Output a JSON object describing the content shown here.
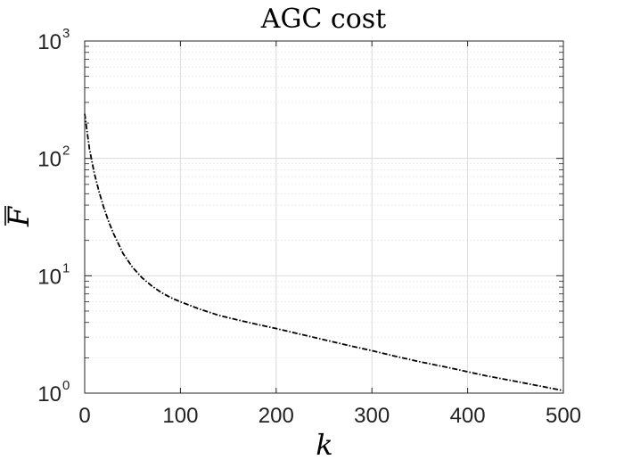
{
  "chart_data": {
    "type": "line",
    "title": "AGC cost",
    "xlabel": "k",
    "ylabel": "F",
    "ylabel_overline": true,
    "xlim": [
      0,
      500
    ],
    "ylim": [
      1,
      1000
    ],
    "yscale": "log",
    "grid": true,
    "minor_grid": true,
    "xticks": [
      "0",
      "100",
      "200",
      "300",
      "400",
      "500"
    ],
    "yticks": [
      {
        "base": "10",
        "exp": "0"
      },
      {
        "base": "10",
        "exp": "1"
      },
      {
        "base": "10",
        "exp": "2"
      },
      {
        "base": "10",
        "exp": "3"
      }
    ],
    "series": [
      {
        "color": "#000000",
        "style": "dash-dot",
        "x": [
          0,
          5,
          10,
          15,
          20,
          25,
          30,
          40,
          50,
          60,
          70,
          80,
          90,
          100,
          120,
          140,
          160,
          180,
          200,
          220,
          250,
          280,
          300,
          320,
          350,
          380,
          400,
          420,
          450,
          480,
          500
        ],
        "y": [
          240,
          120,
          75,
          52,
          38,
          29,
          23,
          15.5,
          11.8,
          9.6,
          8.2,
          7.2,
          6.5,
          6.0,
          5.2,
          4.6,
          4.2,
          3.85,
          3.55,
          3.25,
          2.85,
          2.5,
          2.3,
          2.1,
          1.85,
          1.65,
          1.52,
          1.4,
          1.26,
          1.13,
          1.05
        ]
      }
    ]
  }
}
